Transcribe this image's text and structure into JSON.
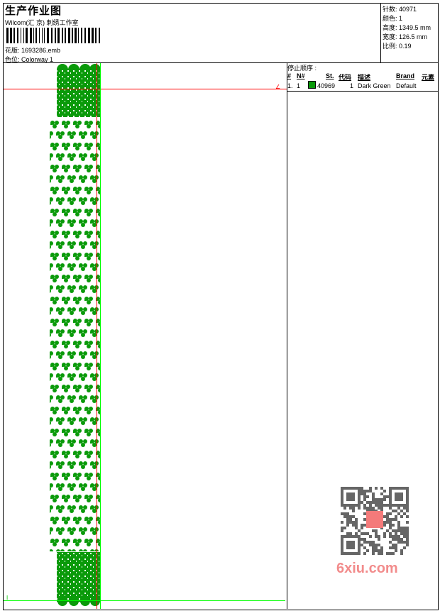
{
  "header": {
    "title": "生产作业图",
    "company": "Wilcom(汇 京) 刺绣工作室",
    "design_file": "花版:  1693286.emb",
    "colorway": "色位:  Colorway 1"
  },
  "info": {
    "stitches": "针数:  40971",
    "colors": "颜色:  1",
    "height": "高度:  1349.5 mm",
    "width": "宽度:  126.5 mm",
    "scale": "比例:  0.19"
  },
  "stop_sequence": {
    "title": "停止顺序 :",
    "columns": [
      "#",
      "N#",
      "St.",
      "代码",
      "描述",
      "Brand",
      "元素"
    ],
    "rows": [
      {
        "index": "1.",
        "needle": "1",
        "color": "#0a9a0a",
        "stitches": "40969",
        "code": "1",
        "description": "Dark Green",
        "brand": "Default"
      }
    ]
  },
  "design": {
    "thread_color": "#0a9a0a",
    "guide_red": "#ff0000",
    "guide_green": "#00ff00",
    "marker_label": "I"
  },
  "watermark": {
    "text": "6xiu.com",
    "seal": "以图服饰"
  }
}
